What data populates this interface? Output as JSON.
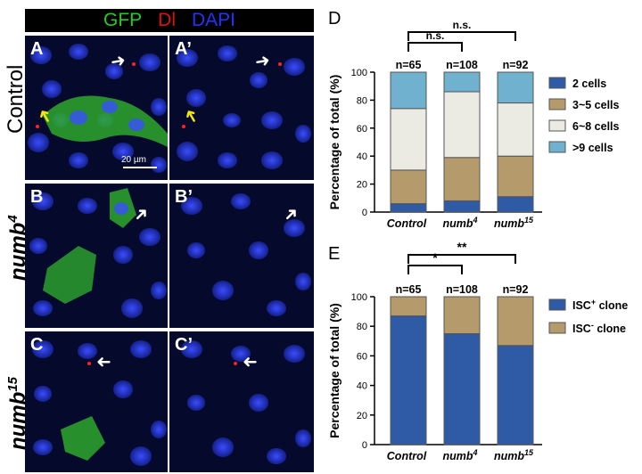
{
  "image_header": {
    "labels": [
      {
        "text": "GFP",
        "color": "#22cc22"
      },
      {
        "text": "Dl",
        "color": "#dd1111"
      },
      {
        "text": "DAPI",
        "color": "#2233ff"
      }
    ]
  },
  "rows": [
    {
      "label": "Control",
      "superscript": ""
    },
    {
      "label": "numb",
      "superscript": "4"
    },
    {
      "label": "numb",
      "superscript": "15"
    }
  ],
  "panels": {
    "A": "A",
    "A_prime": "A’",
    "B": "B",
    "B_prime": "B’",
    "C": "C",
    "C_prime": "C’"
  },
  "scale_bar": "20 µm",
  "colors": {
    "two_cells": "#2e5aa6",
    "three_five": "#b59a6c",
    "six_eight": "#ecebe3",
    "nine_plus": "#6fb1cf",
    "isc_pos": "#2e5aa6",
    "isc_neg": "#b59a6c"
  },
  "chart_data": [
    {
      "panel": "D",
      "type": "bar",
      "stacked": true,
      "categories": [
        "Control",
        "numb",
        "numb"
      ],
      "category_superscripts": [
        "",
        "4",
        "15"
      ],
      "ylabel": "Percentage of total (%)",
      "ylim": [
        0,
        100
      ],
      "yticks": [
        "0",
        "20",
        "40",
        "60",
        "80",
        "100"
      ],
      "n_labels": [
        "n=65",
        "n=108",
        "n=92"
      ],
      "series": [
        {
          "name": "2 cells",
          "values": [
            6,
            8,
            11
          ]
        },
        {
          "name": "3~5 cells",
          "values": [
            24,
            31,
            29
          ]
        },
        {
          "name": "6~8 cells",
          "values": [
            44,
            47,
            38
          ]
        },
        {
          "name": ">9 cells",
          "values": [
            26,
            14,
            22
          ]
        }
      ],
      "legend_placement": "right",
      "significance": [
        {
          "from": 0,
          "to": 1,
          "label": "n.s."
        },
        {
          "from": 0,
          "to": 2,
          "label": "n.s."
        }
      ]
    },
    {
      "panel": "E",
      "type": "bar",
      "stacked": true,
      "categories": [
        "Control",
        "numb",
        "numb"
      ],
      "category_superscripts": [
        "",
        "4",
        "15"
      ],
      "ylabel": "Percentage of total (%)",
      "ylim": [
        0,
        100
      ],
      "yticks": [
        "0",
        "20",
        "40",
        "60",
        "80",
        "100"
      ],
      "n_labels": [
        "n=65",
        "n=108",
        "n=92"
      ],
      "series": [
        {
          "name": "ISC",
          "superscript": "+",
          "suffix": " clone",
          "values": [
            87,
            75,
            67
          ]
        },
        {
          "name": "ISC",
          "superscript": "-",
          "suffix": " clone",
          "values": [
            13,
            25,
            33
          ]
        }
      ],
      "legend_placement": "right",
      "significance": [
        {
          "from": 0,
          "to": 1,
          "label": "*"
        },
        {
          "from": 0,
          "to": 2,
          "label": "**"
        }
      ]
    }
  ]
}
